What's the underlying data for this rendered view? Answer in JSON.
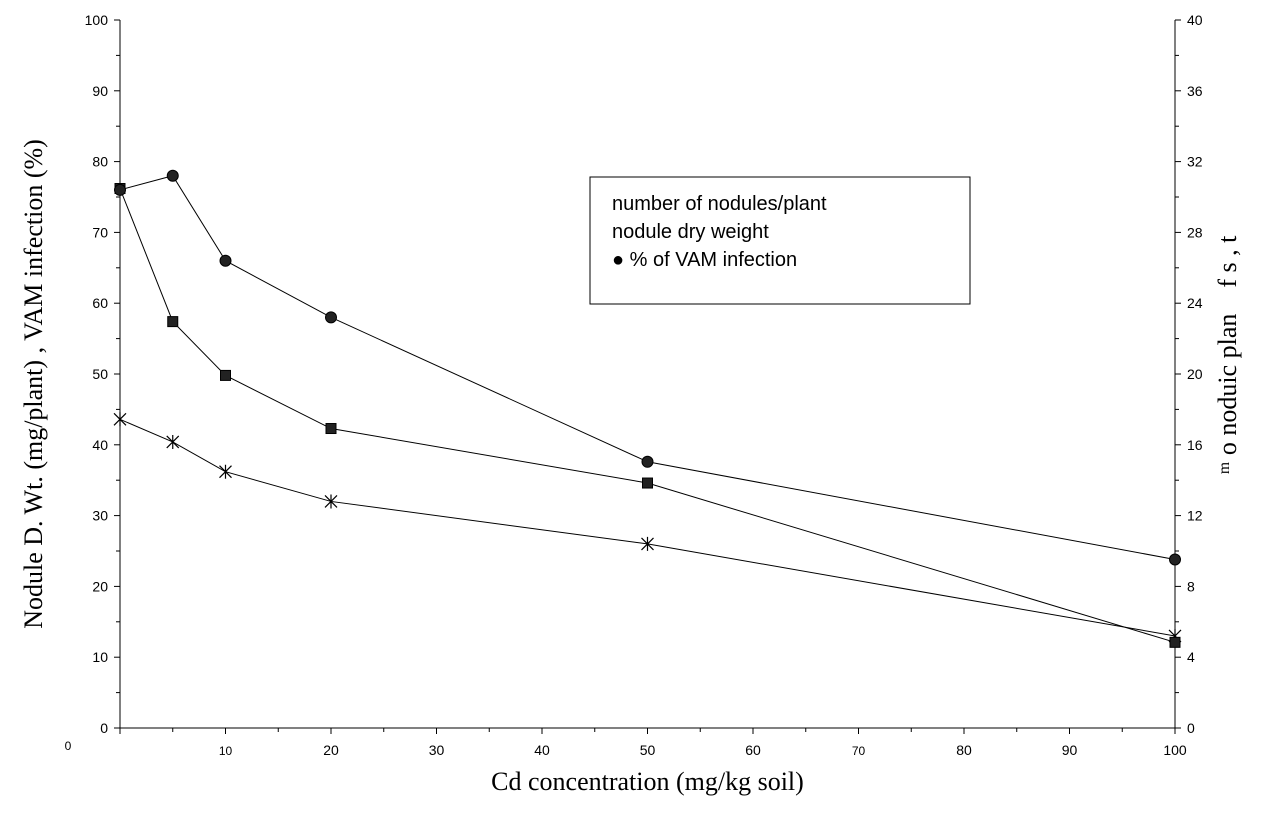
{
  "chart_data": {
    "type": "line",
    "xlabel": "Cd concentration (mg/kg soil)",
    "ylabel": "Nodule D. Wt. (mg/plant) , VAM infection (%)",
    "y2label": "ᵐ o noduic  plan f  s  ,  t",
    "x_ticks": [
      "0",
      "10",
      "20",
      "30",
      "40",
      "50",
      "60",
      "70",
      "80",
      "90",
      "100"
    ],
    "y_ticks": [
      "0",
      "10",
      "20",
      "30",
      "40",
      "50",
      "60",
      "70",
      "80",
      "90",
      "100"
    ],
    "y2_ticks": [
      "0",
      "4",
      "8",
      "12",
      "16",
      "20",
      "24",
      "28",
      "32",
      "36",
      "40"
    ],
    "ylim": [
      0,
      100
    ],
    "y2lim": [
      0,
      40
    ],
    "x": [
      0,
      5,
      10,
      20,
      50,
      100
    ],
    "series": [
      {
        "name": "number of nodules/plant",
        "marker": "star",
        "axis": "left",
        "values": [
          43.6,
          40.4,
          36.2,
          32.0,
          26.0,
          13.0
        ]
      },
      {
        "name": "nodule dry weight",
        "marker": "square",
        "axis": "left",
        "values": [
          76.2,
          57.4,
          49.8,
          42.3,
          34.6,
          12.1
        ]
      },
      {
        "name": "% of VAM infection",
        "marker": "circle",
        "axis": "left",
        "values": [
          76.0,
          78.0,
          66.0,
          58.0,
          37.6,
          23.8
        ]
      }
    ],
    "legend": {
      "position": "top-right",
      "entries": [
        "number of nodules/plant",
        "nodule dry weight",
        "● % of VAM infection"
      ]
    },
    "grid": false
  }
}
